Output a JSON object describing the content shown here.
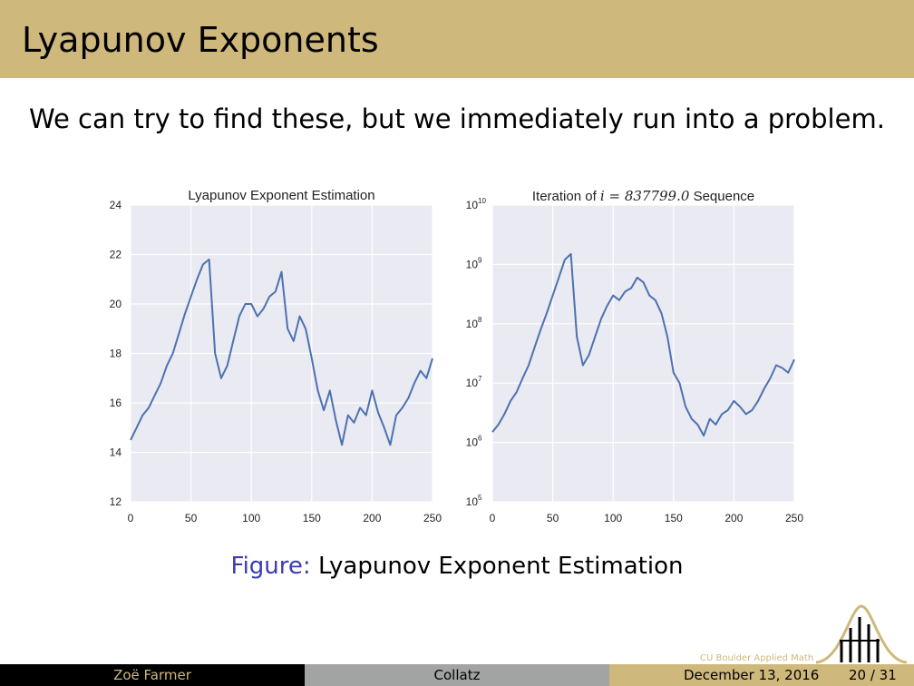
{
  "slide": {
    "title": "Lyapunov Exponents",
    "body": "We can try to find these, but we immediately run into a problem.",
    "caption_label": "Figure:",
    "caption_text": "Lyapunov Exponent Estimation"
  },
  "footer": {
    "author": "Zoë Farmer",
    "topic": "Collatz",
    "date": "December 13, 2016",
    "page": "20 / 31",
    "institution": "CU Boulder Applied Math"
  },
  "colors": {
    "accent": "#cfb87c",
    "series": "#4c72b0",
    "panel": "#eaeaf2",
    "caption_label": "#3b3bb3"
  },
  "chart_data": [
    {
      "type": "line",
      "title": "Lyapunov Exponent Estimation",
      "xlim": [
        0,
        250
      ],
      "ylim": [
        12,
        24
      ],
      "x_ticks": [
        "0",
        "50",
        "100",
        "150",
        "200",
        "250"
      ],
      "y_ticks": [
        "12",
        "14",
        "16",
        "18",
        "20",
        "22",
        "24"
      ],
      "grid": true,
      "series": [
        {
          "x": [
            0,
            5,
            10,
            15,
            20,
            25,
            30,
            35,
            40,
            45,
            50,
            55,
            60,
            65,
            70,
            75,
            80,
            85,
            90,
            95,
            100,
            105,
            110,
            115,
            120,
            125,
            130,
            135,
            140,
            145,
            150,
            155,
            160,
            165,
            170,
            175,
            180,
            185,
            190,
            195,
            200,
            205,
            210,
            215,
            220,
            225,
            230,
            235,
            240,
            245,
            250
          ],
          "y": [
            14.5,
            15,
            15.5,
            15.8,
            16.3,
            16.8,
            17.5,
            18,
            18.8,
            19.6,
            20.3,
            21,
            21.6,
            21.8,
            18,
            17,
            17.5,
            18.5,
            19.5,
            20,
            20,
            19.5,
            19.8,
            20.3,
            20.5,
            21.3,
            19,
            18.5,
            19.5,
            19,
            17.8,
            16.5,
            15.7,
            16.5,
            15.3,
            14.3,
            15.5,
            15.2,
            15.8,
            15.5,
            16.5,
            15.6,
            15,
            14.3,
            15.5,
            15.8,
            16.2,
            16.8,
            17.3,
            17,
            17.8
          ]
        }
      ]
    },
    {
      "type": "line",
      "title": "Iteration of",
      "title_math": "i = 837799.0",
      "title_suffix": "Sequence",
      "xlim": [
        0,
        250
      ],
      "ylim": [
        100000,
        10000000000
      ],
      "yscale": "log",
      "x_ticks": [
        "0",
        "50",
        "100",
        "150",
        "200",
        "250"
      ],
      "y_ticks": [
        "10",
        "10",
        "10",
        "10",
        "10",
        "10"
      ],
      "y_tick_exponents": [
        "5",
        "6",
        "7",
        "8",
        "9",
        "10"
      ],
      "grid": true,
      "series": [
        {
          "x": [
            0,
            5,
            10,
            15,
            20,
            25,
            30,
            35,
            40,
            45,
            50,
            55,
            60,
            65,
            70,
            75,
            80,
            85,
            90,
            95,
            100,
            105,
            110,
            115,
            120,
            125,
            130,
            135,
            140,
            145,
            150,
            155,
            160,
            165,
            170,
            175,
            180,
            185,
            190,
            195,
            200,
            205,
            210,
            215,
            220,
            225,
            230,
            235,
            240,
            245,
            250
          ],
          "y": [
            1500000,
            2000000,
            3000000,
            5000000,
            7000000,
            12000000,
            20000000,
            40000000,
            80000000,
            150000000,
            300000000,
            600000000,
            1200000000,
            1500000000,
            60000000,
            20000000,
            30000000,
            60000000,
            120000000,
            200000000,
            300000000,
            250000000,
            350000000,
            400000000,
            600000000,
            500000000,
            300000000,
            250000000,
            150000000,
            60000000,
            15000000,
            10000000,
            4000000,
            2500000,
            2000000,
            1300000,
            2500000,
            2000000,
            3000000,
            3500000,
            5000000,
            4000000,
            3000000,
            3500000,
            5000000,
            8000000,
            12000000,
            20000000,
            18000000,
            15000000,
            25000000
          ]
        }
      ]
    }
  ]
}
